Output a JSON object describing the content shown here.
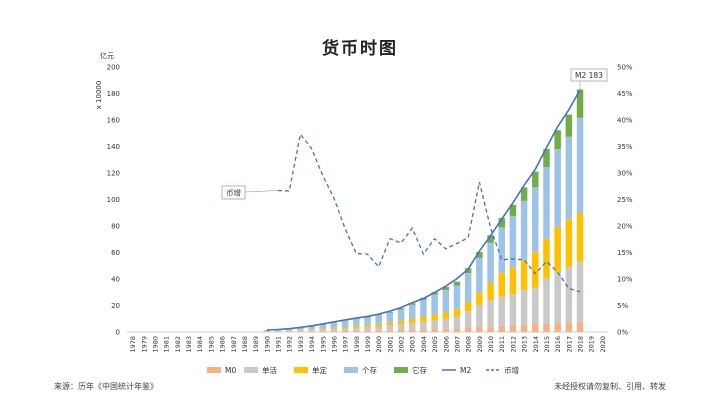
{
  "title": "货币时图",
  "source_note": "来源：历年《中国统计年鉴》",
  "copyright_note": "未经授权请勿复制、引用、转发",
  "chart_data": {
    "type": "bar",
    "stacked": true,
    "title": "货币时图",
    "y_unit_label": "亿元",
    "y_scale_label": "x 10000",
    "ylim": [
      0,
      200
    ],
    "y2lim": [
      0,
      0.5
    ],
    "y_ticks": [
      "0",
      "20",
      "40",
      "60",
      "80",
      "100",
      "120",
      "140",
      "160",
      "180",
      "200"
    ],
    "y2_ticks": [
      "0%",
      "5%",
      "10%",
      "15%",
      "20%",
      "25%",
      "30%",
      "35%",
      "40%",
      "45%",
      "50%"
    ],
    "categories": [
      "1978",
      "1979",
      "1980",
      "1981",
      "1982",
      "1983",
      "1984",
      "1985",
      "1986",
      "1987",
      "1988",
      "1989",
      "1990",
      "1991",
      "1992",
      "1993",
      "1994",
      "1995",
      "1996",
      "1997",
      "1998",
      "1999",
      "2000",
      "2001",
      "2002",
      "2003",
      "2004",
      "2005",
      "2006",
      "2007",
      "2008",
      "2009",
      "2010",
      "2011",
      "2012",
      "2013",
      "2014",
      "2015",
      "2016",
      "2017",
      "2018",
      "2019",
      "2020"
    ],
    "series": [
      {
        "name": "M0",
        "color": "#f4b183",
        "values": [
          0,
          0,
          0,
          0,
          0,
          0,
          0,
          0,
          0,
          0,
          0,
          0,
          0.15,
          0.2,
          0.3,
          0.4,
          0.5,
          0.6,
          0.7,
          0.8,
          0.9,
          1.0,
          1.2,
          1.3,
          1.5,
          1.8,
          2.0,
          2.2,
          2.4,
          2.7,
          3.0,
          3.4,
          4.0,
          4.6,
          5.0,
          5.5,
          6.0,
          6.3,
          6.8,
          7.0,
          7.3,
          0,
          0
        ]
      },
      {
        "name": "单活",
        "color": "#c9c9c9",
        "values": [
          0,
          0,
          0,
          0,
          0,
          0,
          0,
          0,
          0,
          0,
          0,
          0,
          0.3,
          0.5,
          0.7,
          0.9,
          1.1,
          1.3,
          1.6,
          1.9,
          2.2,
          2.5,
          3.0,
          3.5,
          4.1,
          5.0,
          5.7,
          6.5,
          7.5,
          8.8,
          12.7,
          17.0,
          20.0,
          22.0,
          23.5,
          26.0,
          27.5,
          34.0,
          38.5,
          42.0,
          46.0,
          0,
          0
        ]
      },
      {
        "name": "单定",
        "color": "#ffc000",
        "values": [
          0,
          0,
          0,
          0,
          0,
          0,
          0,
          0,
          0,
          0,
          0,
          0,
          0.1,
          0.2,
          0.3,
          0.4,
          0.5,
          0.7,
          0.9,
          1.1,
          1.4,
          1.7,
          2.0,
          2.4,
          2.8,
          3.3,
          4.0,
          4.6,
          5.2,
          6.0,
          7.0,
          9.5,
          13.0,
          18.0,
          20.0,
          23.0,
          27.0,
          30.0,
          34.0,
          36.0,
          36.5,
          0,
          0
        ]
      },
      {
        "name": "个存",
        "color": "#9dc3e6",
        "values": [
          0,
          0,
          0,
          0,
          0,
          0,
          0,
          0,
          0,
          0,
          0,
          0,
          0.6,
          0.8,
          1.2,
          1.6,
          2.2,
          2.8,
          3.6,
          4.4,
          5.2,
          5.8,
          6.4,
          7.3,
          8.6,
          10.4,
          12.6,
          14.8,
          16.5,
          17.5,
          21.8,
          26.0,
          30.3,
          34.3,
          39.1,
          44.5,
          48.7,
          54.2,
          58.7,
          62.3,
          71.9,
          0,
          0
        ]
      },
      {
        "name": "它存",
        "color": "#70ad47",
        "values": [
          0,
          0,
          0,
          0,
          0,
          0,
          0,
          0,
          0,
          0,
          0,
          0,
          0.05,
          0.1,
          0.1,
          0.2,
          0.2,
          0.2,
          0.3,
          0.3,
          0.4,
          0.5,
          0.6,
          0.7,
          0.9,
          1.2,
          1.5,
          1.9,
          2.4,
          3.0,
          3.6,
          4.5,
          5.7,
          7.1,
          8.4,
          10.1,
          11.8,
          13.7,
          14.3,
          16.8,
          21.3,
          0,
          0
        ]
      },
      {
        "name": "M2",
        "type": "line",
        "color": "#4472c4",
        "values": [
          null,
          null,
          null,
          null,
          null,
          null,
          null,
          null,
          null,
          null,
          null,
          null,
          1.5,
          1.9,
          2.5,
          3.5,
          4.7,
          6.1,
          7.6,
          9.1,
          10.5,
          11.8,
          13.5,
          15.8,
          18.5,
          22.1,
          25.3,
          29.9,
          34.6,
          40.3,
          47.5,
          61.0,
          72.6,
          85.2,
          97.4,
          110.7,
          122.8,
          139.2,
          155.0,
          167.7,
          182.7,
          null,
          null
        ]
      },
      {
        "name": "币增",
        "type": "line",
        "dashed": true,
        "axis": "right",
        "color": "#4472c4",
        "values": [
          null,
          null,
          null,
          null,
          null,
          null,
          null,
          null,
          null,
          null,
          null,
          null,
          null,
          0.267,
          0.266,
          0.373,
          0.346,
          0.295,
          0.253,
          0.195,
          0.148,
          0.147,
          0.123,
          0.176,
          0.168,
          0.196,
          0.147,
          0.176,
          0.157,
          0.167,
          0.178,
          0.283,
          0.197,
          0.136,
          0.138,
          0.136,
          0.11,
          0.133,
          0.113,
          0.082,
          0.076,
          null,
          null
        ]
      }
    ],
    "annotations": [
      {
        "text": "M2 183",
        "target": "M2",
        "category": "2018"
      },
      {
        "text": "币增",
        "target": "币增",
        "category": "1991"
      }
    ],
    "legend_position": "bottom",
    "grid": false
  }
}
